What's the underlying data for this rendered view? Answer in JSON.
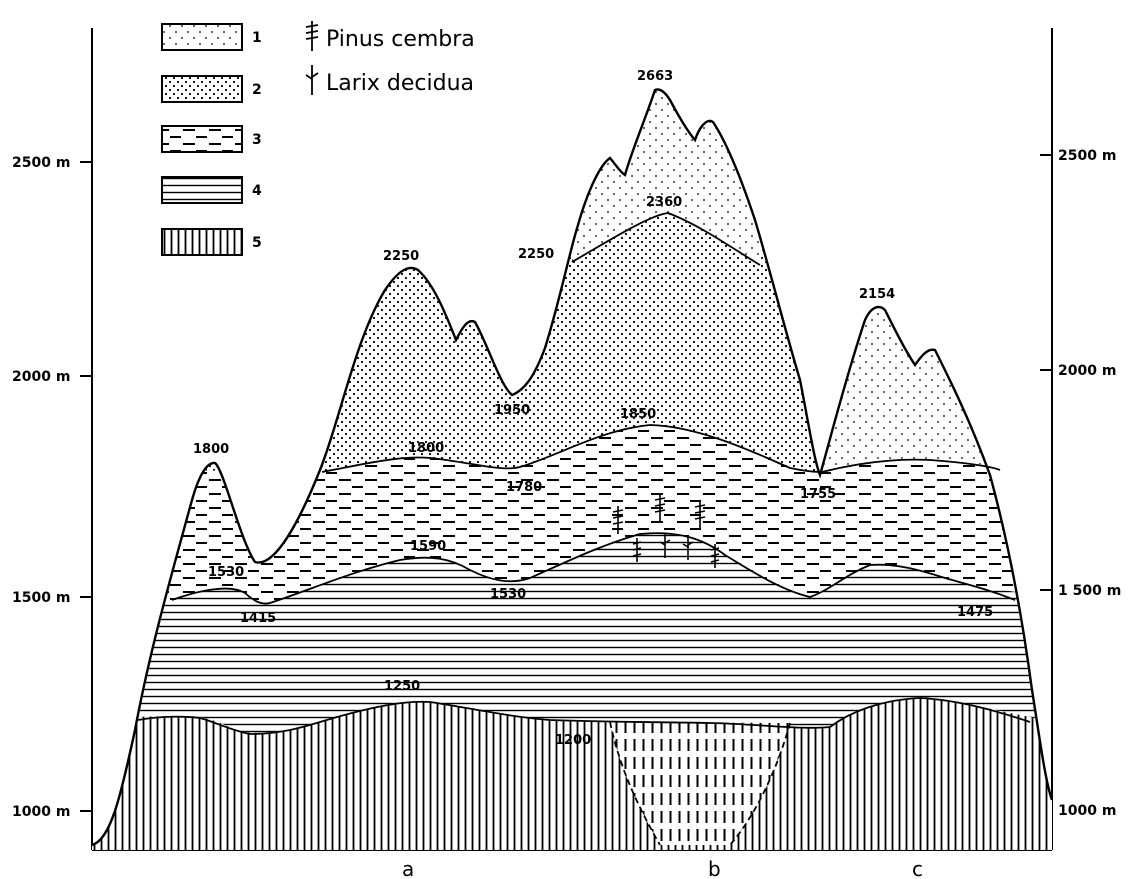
{
  "legend": {
    "zones": [
      {
        "label": "1",
        "pattern": "pat1"
      },
      {
        "label": "2",
        "pattern": "pat2"
      },
      {
        "label": "3",
        "pattern": "pat3"
      },
      {
        "label": "4",
        "pattern": "pat4"
      },
      {
        "label": "5",
        "pattern": "pat5"
      }
    ],
    "species": [
      {
        "name": "Pinus cembra",
        "icon": "pine-tree-icon"
      },
      {
        "name": "Larix decidua",
        "icon": "larch-tree-icon"
      }
    ]
  },
  "axis": {
    "left_labels": [
      "2500 m",
      "2000 m",
      "1500 m",
      "1000 m"
    ],
    "right_labels": [
      "2500 m",
      "2000 m",
      "1 500 m",
      "1000 m"
    ]
  },
  "elevations": {
    "peak_b": "2663",
    "b_2360": "2360",
    "b_2250": "2250",
    "peak_a": "2250",
    "peak_c": "2154",
    "saddle_1950": "1950",
    "peak_1800": "1800",
    "belt_1850": "1850",
    "belt_1800": "1800",
    "belt_1780": "1780",
    "belt_1755": "1755",
    "belt_1590": "1590",
    "belt_1530_left": "1530",
    "belt_1530_mid": "1530",
    "belt_1415": "1415",
    "belt_1475": "1475",
    "base_1250": "1250",
    "base_1200": "1200"
  },
  "locations": [
    "a",
    "b",
    "c"
  ]
}
